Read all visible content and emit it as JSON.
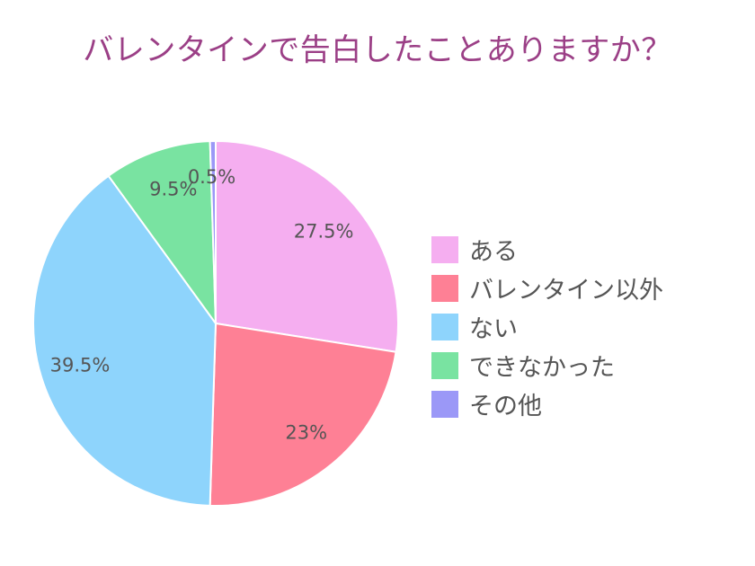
{
  "chart_data": {
    "type": "pie",
    "title": "バレンタインで告白したことありますか？",
    "categories": [
      "ある",
      "バレンタイン以外",
      "ない",
      "できなかった",
      "その他"
    ],
    "values": [
      27.5,
      23,
      39.5,
      9.5,
      0.5
    ],
    "labels": [
      "27.5%",
      "23%",
      "39.5%",
      "9.5%",
      "0.5%"
    ],
    "colors": [
      "#f5aef0",
      "#fe8095",
      "#8ed4fc",
      "#79e3a1",
      "#9b98f7"
    ],
    "direction": "clockwise",
    "start": "top",
    "legend": "right"
  }
}
